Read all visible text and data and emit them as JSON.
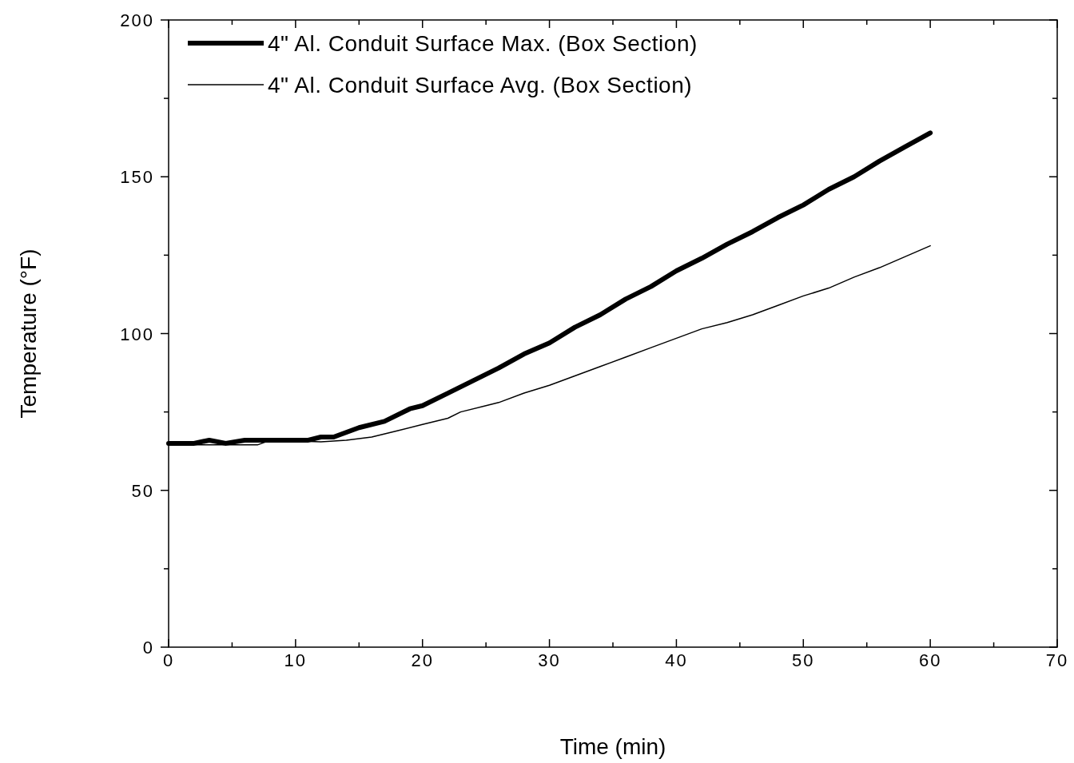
{
  "chart_data": {
    "type": "line",
    "xlabel": "Time  (min)",
    "ylabel": "Temperature  (°F)",
    "xlim": [
      0,
      70
    ],
    "ylim": [
      0,
      200
    ],
    "xticks": [
      0,
      {
        "value": 5,
        "label": null
      },
      10,
      {
        "value": 15,
        "label": null
      },
      20,
      {
        "value": 25,
        "label": null
      },
      30,
      {
        "value": 35,
        "label": null
      },
      40,
      {
        "value": 45,
        "label": null
      },
      50,
      {
        "value": 55,
        "label": null
      },
      60,
      {
        "value": 65,
        "label": null
      },
      70
    ],
    "yticks": [
      0,
      {
        "value": 25,
        "label": null
      },
      50,
      {
        "value": 75,
        "label": null
      },
      100,
      {
        "value": 125,
        "label": null
      },
      150,
      {
        "value": 175,
        "label": null
      },
      200
    ],
    "grid": false,
    "legend": "top left",
    "line_style": "solid",
    "marker": "none",
    "series": [
      {
        "name": "4\" Al. Conduit Surface Max. (Box Section)",
        "color": "#000000",
        "x": [
          0,
          2,
          3.2,
          4.5,
          6,
          11,
          12,
          13,
          15,
          17,
          19,
          20,
          22,
          24,
          26,
          28,
          30,
          32,
          34,
          36,
          38,
          40,
          42,
          44,
          46,
          48,
          50,
          52,
          54,
          56,
          58,
          60
        ],
        "values": [
          65,
          65,
          66,
          65,
          66,
          66,
          67,
          67,
          70,
          72,
          76,
          77,
          81,
          85,
          89,
          93.5,
          97,
          102,
          106,
          111,
          115,
          120,
          124,
          128.5,
          132.5,
          137,
          141,
          146,
          150,
          155,
          159.5,
          164
        ]
      },
      {
        "name": "4\" Al. Conduit Surface Avg. (Box Section)",
        "color": "#000000",
        "x": [
          0,
          7,
          8,
          12,
          14,
          16,
          18,
          20,
          22,
          23,
          26,
          28,
          30,
          32,
          34,
          36,
          38,
          40,
          42,
          44,
          46,
          48,
          50,
          52,
          54,
          56,
          58,
          60
        ],
        "values": [
          64.5,
          64.5,
          66,
          65.5,
          66,
          67,
          69,
          71,
          73,
          75,
          78,
          81,
          83.5,
          86.5,
          89.5,
          92.5,
          95.5,
          98.5,
          101.5,
          103.5,
          106,
          109,
          112,
          114.5,
          118,
          121,
          124.5,
          128
        ]
      }
    ]
  }
}
